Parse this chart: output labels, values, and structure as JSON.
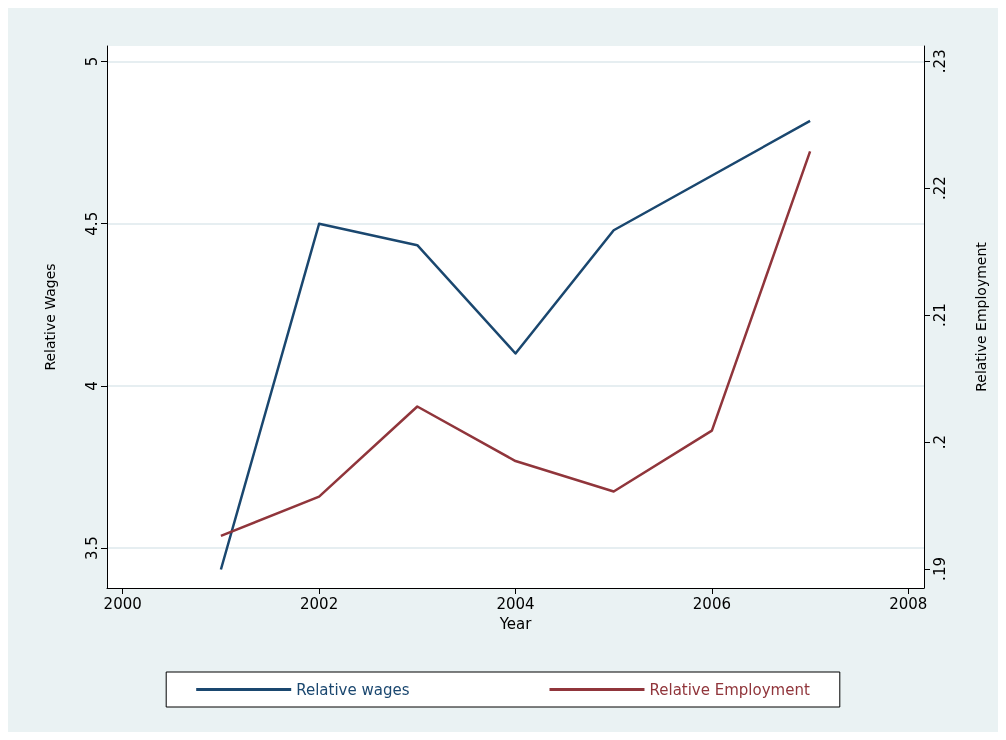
{
  "chart_data": {
    "type": "line",
    "xlabel": "Year",
    "ylabel": "Relative Wages",
    "y2label": "Relative Employment",
    "xlim": [
      1999.84,
      2008.16
    ],
    "xticks": [
      2000,
      2002,
      2004,
      2006,
      2008
    ],
    "ylim": [
      3.377,
      5.048
    ],
    "yticks": [
      3.5,
      {
        "value": 4,
        "label": "4"
      },
      4.5,
      {
        "value": 5,
        "label": "5"
      }
    ],
    "y2lim": [
      0.1885,
      0.2312
    ],
    "y2ticks": [
      {
        "value": 0.19,
        "label": ".19"
      },
      {
        "value": 0.2,
        "label": ".2"
      },
      {
        "value": 0.21,
        "label": ".21"
      },
      {
        "value": 0.22,
        "label": ".22"
      },
      {
        "value": 0.23,
        "label": ".23"
      }
    ],
    "grid": "y",
    "legend": "bottom",
    "marker": "none",
    "line_style": "solid",
    "series": [
      {
        "name": "Relative wages",
        "color": "#1a476f",
        "x": [
          2001,
          2002,
          2003,
          2004,
          2005,
          2007
        ],
        "values": [
          3.434,
          4.5,
          4.434,
          4.1,
          4.48,
          4.817
        ]
      },
      {
        "name": "Relative Employment",
        "color": "#90353b",
        "axis": "y2",
        "x": [
          2001,
          2002,
          2003,
          2004,
          2005,
          2006,
          2007
        ],
        "values": [
          0.1926,
          0.1957,
          0.2028,
          0.1985,
          0.1961,
          0.2009,
          0.2229
        ]
      }
    ]
  }
}
